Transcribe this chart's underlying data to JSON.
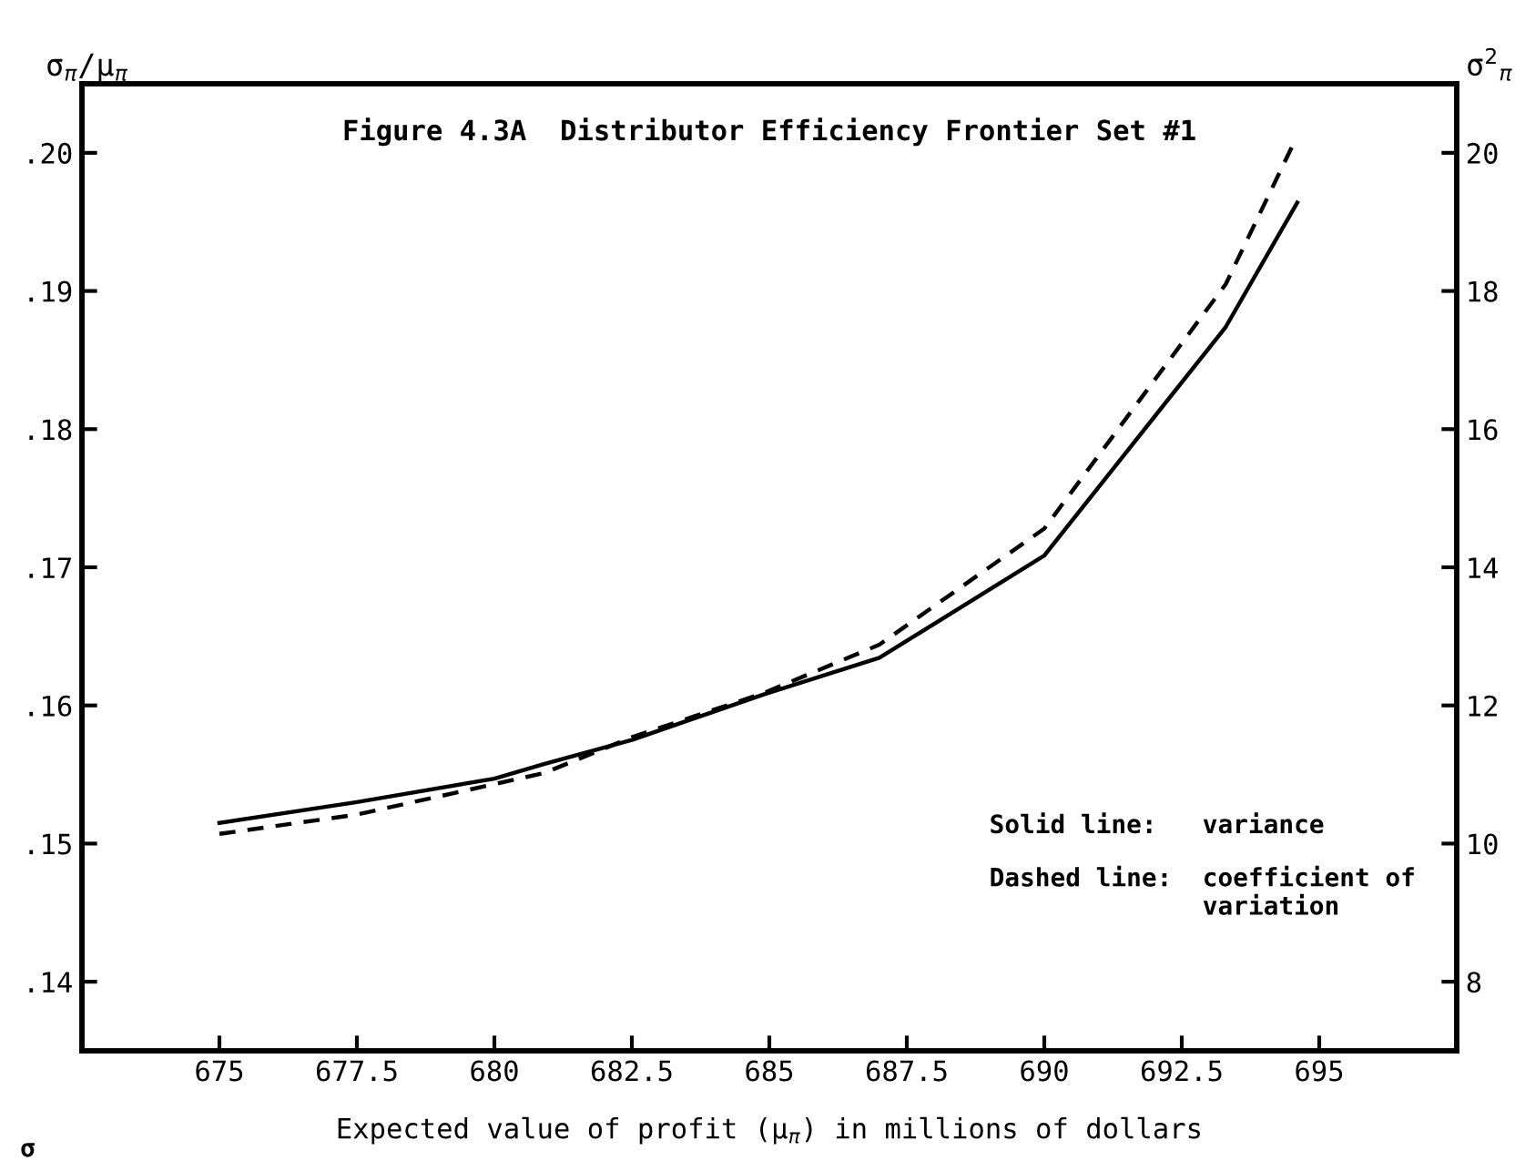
{
  "chart_data": {
    "type": "line",
    "title": "Figure 4.3A  Distributor Efficiency Frontier Set #1",
    "xlabel": "Expected value of profit (μ$_{π}$) in millions of dollars",
    "ylabel": "σ$_{π}$/μ$_{π}$",
    "y2label": "σ$^{2}$$_{π}$",
    "series": [
      {
        "color": "#000000",
        "line_style": "solid",
        "axis": "y2",
        "x": [
          675,
          677.5,
          680,
          680.9,
          682.5,
          684.9,
          687.0,
          690,
          693.3,
          694.6
        ],
        "values": [
          10.3,
          10.6,
          10.94,
          11.15,
          11.5,
          12.16,
          12.69,
          14.17,
          17.48,
          19.28
        ]
      },
      {
        "color": "#000000",
        "line_style": "dashed",
        "axis": "y",
        "x": [
          675,
          677.5,
          680.9,
          682.5,
          684.9,
          687.0,
          690,
          693.3,
          694.5
        ],
        "values": [
          0.1507,
          0.1521,
          0.1551,
          0.1577,
          0.1609,
          0.1644,
          0.1728,
          0.1905,
          0.2004
        ]
      }
    ],
    "xlim": [
      672.5,
      697.5
    ],
    "xticks": [
      675,
      677.5,
      680,
      682.5,
      685,
      687.5,
      690,
      692.5,
      695
    ],
    "ylim": [
      0.135,
      0.205
    ],
    "yticks": [
      {
        "value": 0.14,
        "label": ".14"
      },
      {
        "value": 0.15,
        "label": ".15"
      },
      {
        "value": 0.16,
        "label": ".16"
      },
      {
        "value": 0.17,
        "label": ".17"
      },
      {
        "value": 0.18,
        "label": ".18"
      },
      {
        "value": 0.19,
        "label": ".19"
      },
      {
        "value": 0.2,
        "label": ".20"
      }
    ],
    "y2lim": [
      7,
      21
    ],
    "y2ticks": [
      8,
      10,
      12,
      14,
      16,
      18,
      20
    ],
    "grid": false,
    "legend": false,
    "marker": "none",
    "annotations": [
      "Solid line:   variance",
      "Dashed line:  coefficient of\n              variation",
      "σ"
    ]
  }
}
